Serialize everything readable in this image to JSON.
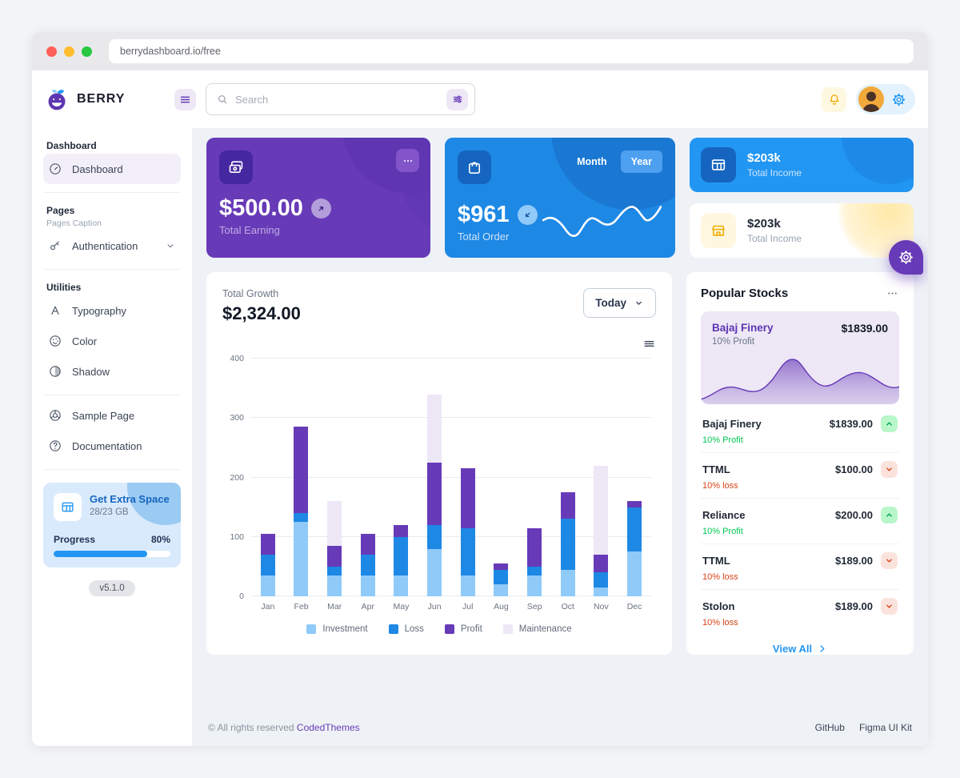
{
  "browser": {
    "url": "berrydashboard.io/free"
  },
  "topbar": {
    "brand": "BERRY",
    "search_placeholder": "Search"
  },
  "colors": {
    "primary": "#2196f3",
    "secondary": "#673ab7",
    "success": "#00c853",
    "error": "#d84315",
    "warning": "#ffc107"
  },
  "sidebar": {
    "sections": [
      {
        "title": "Dashboard",
        "caption": "",
        "items": [
          {
            "label": "Dashboard",
            "icon": "gauge-icon",
            "active": true,
            "chevron": false
          }
        ]
      },
      {
        "title": "Pages",
        "caption": "Pages Caption",
        "items": [
          {
            "label": "Authentication",
            "icon": "key-icon",
            "active": false,
            "chevron": true
          }
        ]
      },
      {
        "title": "Utilities",
        "caption": "",
        "items": [
          {
            "label": "Typography",
            "icon": "typography-icon",
            "active": false,
            "chevron": false
          },
          {
            "label": "Color",
            "icon": "palette-icon",
            "active": false,
            "chevron": false
          },
          {
            "label": "Shadow",
            "icon": "shadow-icon",
            "active": false,
            "chevron": false
          }
        ]
      },
      {
        "title": "",
        "caption": "",
        "items": [
          {
            "label": "Sample Page",
            "icon": "compass-icon",
            "active": false,
            "chevron": false
          },
          {
            "label": "Documentation",
            "icon": "help-icon",
            "active": false,
            "chevron": false
          }
        ]
      }
    ],
    "upgrade_card": {
      "title": "Get Extra Space",
      "subtitle": "28/23 GB",
      "progress_label": "Progress",
      "progress_value": "80%",
      "progress_pct": 80
    },
    "version": "v5.1.0"
  },
  "cards": {
    "earning": {
      "amount": "$500.00",
      "label": "Total Earning"
    },
    "order": {
      "amount": "$961",
      "label": "Total Order",
      "toggle": [
        "Month",
        "Year"
      ],
      "active_toggle": "Year"
    },
    "income_blue": {
      "amount": "$203k",
      "label": "Total Income"
    },
    "income_light": {
      "amount": "$203k",
      "label": "Total Income"
    }
  },
  "growth": {
    "label": "Total Growth",
    "amount": "$2,324.00",
    "range": "Today"
  },
  "chart_data": {
    "type": "bar",
    "stacked": true,
    "title": "Total Growth",
    "categories": [
      "Jan",
      "Feb",
      "Mar",
      "Apr",
      "May",
      "Jun",
      "Jul",
      "Aug",
      "Sep",
      "Oct",
      "Nov",
      "Dec"
    ],
    "series": [
      {
        "name": "Investment",
        "color": "#90caf9",
        "values": [
          35,
          125,
          35,
          35,
          35,
          80,
          35,
          20,
          35,
          45,
          15,
          75
        ]
      },
      {
        "name": "Loss",
        "color": "#1e88e5",
        "values": [
          35,
          15,
          15,
          35,
          65,
          40,
          80,
          25,
          15,
          85,
          25,
          75
        ]
      },
      {
        "name": "Profit",
        "color": "#673ab7",
        "values": [
          35,
          145,
          35,
          35,
          20,
          105,
          100,
          10,
          65,
          45,
          30,
          10
        ]
      },
      {
        "name": "Maintenance",
        "color": "#ede7f6",
        "values": [
          0,
          0,
          75,
          0,
          0,
          115,
          0,
          0,
          0,
          0,
          150,
          0
        ]
      }
    ],
    "ylim": [
      0,
      400
    ],
    "yticks": [
      0,
      100,
      200,
      300,
      400
    ],
    "grid": true,
    "legend_position": "bottom"
  },
  "stocks": {
    "title": "Popular Stocks",
    "featured": {
      "name": "Bajaj Finery",
      "price": "$1839.00",
      "change": "10% Profit"
    },
    "items": [
      {
        "name": "Bajaj Finery",
        "price": "$1839.00",
        "change": "10% Profit",
        "direction": "up"
      },
      {
        "name": "TTML",
        "price": "$100.00",
        "change": "10% loss",
        "direction": "down"
      },
      {
        "name": "Reliance",
        "price": "$200.00",
        "change": "10% Profit",
        "direction": "up"
      },
      {
        "name": "TTML",
        "price": "$189.00",
        "change": "10% loss",
        "direction": "down"
      },
      {
        "name": "Stolon",
        "price": "$189.00",
        "change": "10% loss",
        "direction": "down"
      }
    ],
    "view_all": "View All"
  },
  "footer": {
    "left_prefix": "© All rights reserved",
    "left_link": "CodedThemes",
    "right_links": [
      "GitHub",
      "Figma UI Kit"
    ]
  }
}
